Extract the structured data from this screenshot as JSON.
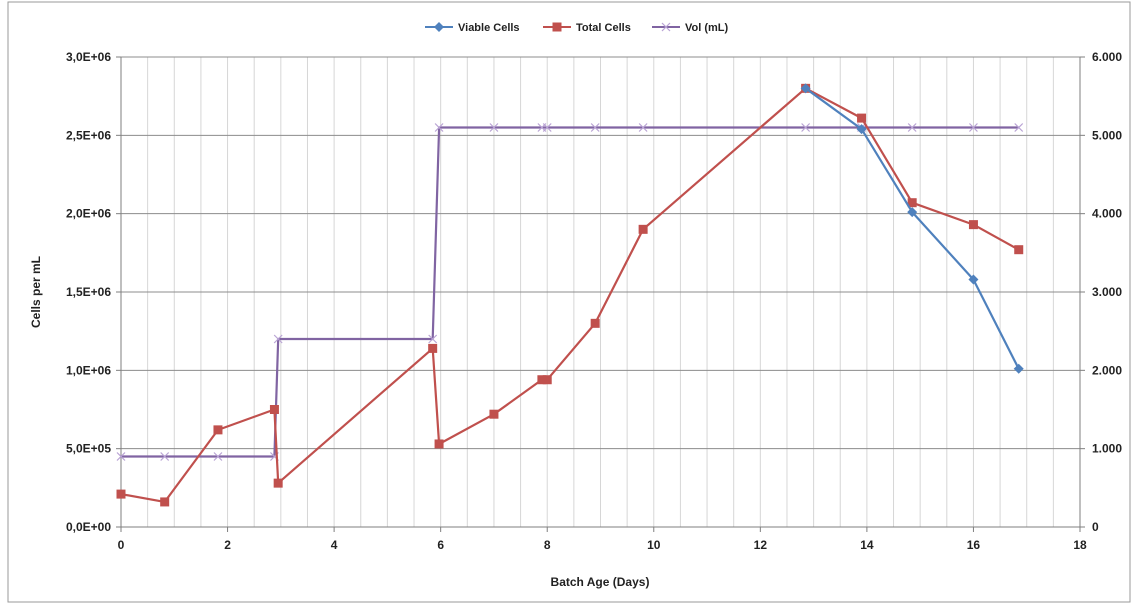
{
  "chart_data": {
    "type": "line",
    "xlabel": "Batch Age (Days)",
    "ylabel": "Cells per mL",
    "xlim": [
      0,
      18
    ],
    "ylim": [
      0,
      3000000
    ],
    "y2lim": [
      0,
      6000
    ],
    "x_ticks": [
      "0",
      "2",
      "4",
      "6",
      "8",
      "10",
      "12",
      "14",
      "16",
      "18"
    ],
    "y_ticks": [
      "0,0E+00",
      "5,0E+05",
      "1,0E+06",
      "1,5E+06",
      "2,0E+06",
      "2,5E+06",
      "3,0E+06"
    ],
    "y2_ticks": [
      "0",
      "1.000",
      "2.000",
      "3.000",
      "4.000",
      "5.000",
      "6.000"
    ],
    "grid": true,
    "legend_position": "top",
    "series": [
      {
        "name": "Viable Cells",
        "axis": "left",
        "color": "#4F81BD",
        "marker": "diamond",
        "x": [
          12.85,
          13.9,
          14.85,
          16.0,
          16.85
        ],
        "y": [
          2800000,
          2540000,
          2010000,
          1580000,
          1010000
        ]
      },
      {
        "name": "Total Cells",
        "axis": "left",
        "color": "#C0504D",
        "marker": "square",
        "x": [
          0.0,
          0.82,
          1.82,
          2.88,
          2.95,
          5.85,
          5.97,
          7.0,
          7.9,
          8.0,
          8.9,
          9.8,
          12.85,
          13.9,
          14.85,
          16.0,
          16.85
        ],
        "y": [
          210000,
          160000,
          620000,
          750000,
          280000,
          1140000,
          530000,
          720000,
          940000,
          940000,
          1300000,
          1900000,
          2800000,
          2610000,
          2070000,
          1930000,
          1770000
        ]
      },
      {
        "name": "Vol (mL)",
        "axis": "right",
        "color": "#8064A2",
        "marker": "x",
        "x": [
          0.0,
          0.82,
          1.82,
          2.88,
          2.95,
          5.85,
          5.97,
          7.0,
          7.9,
          8.0,
          8.9,
          9.8,
          12.85,
          13.9,
          14.85,
          16.0,
          16.85
        ],
        "y": [
          900,
          900,
          900,
          900,
          2400,
          2400,
          5100,
          5100,
          5100,
          5100,
          5100,
          5100,
          5100,
          5100,
          5100,
          5100,
          5100
        ]
      }
    ]
  }
}
